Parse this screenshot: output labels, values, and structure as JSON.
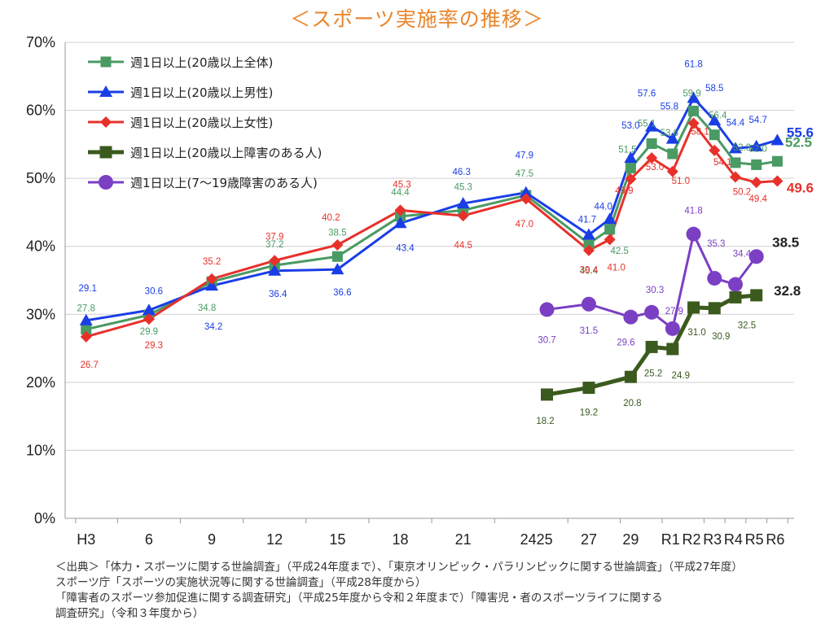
{
  "chart_data": {
    "type": "line",
    "title": "＜スポーツ実施率の推移＞",
    "yticks": [
      "0%",
      "10%",
      "20%",
      "30%",
      "40%",
      "50%",
      "60%",
      "70%"
    ],
    "ylim": [
      0,
      70
    ],
    "xticks": [
      "H3",
      "6",
      "9",
      "12",
      "15",
      "18",
      "21",
      "2425",
      "27",
      "29",
      "R1",
      "R2",
      "R3",
      "R4",
      "R5",
      "R6"
    ],
    "series": [
      {
        "name": "週1日以上(20歳以上全体)",
        "color": "#4a9a63",
        "marker": "square",
        "x": [
          3,
          6,
          9,
          12,
          15,
          18,
          21,
          24,
          27,
          28,
          29,
          30,
          31,
          32,
          33,
          34,
          35,
          36
        ],
        "y": [
          27.8,
          29.9,
          34.8,
          37.2,
          38.5,
          44.4,
          45.3,
          47.5,
          40.4,
          42.5,
          51.5,
          55.1,
          53.6,
          59.9,
          56.4,
          52.3,
          52.0,
          52.5
        ],
        "labels": [
          "27.8",
          "29.9",
          "34.8",
          "37.2",
          "38.5",
          "44.4",
          "45.3",
          "47.5",
          "40.4",
          "42.5",
          "51.5",
          "55.1",
          "53.6",
          "59.9",
          "56.4",
          "52.3",
          "52.0"
        ],
        "end_label": "52.5"
      },
      {
        "name": "週1日以上(20歳以上男性)",
        "color": "#1a3ee6",
        "marker": "triangle",
        "x": [
          3,
          6,
          9,
          12,
          15,
          18,
          21,
          24,
          27,
          28,
          29,
          30,
          31,
          32,
          33,
          34,
          35,
          36
        ],
        "y": [
          29.1,
          30.6,
          34.2,
          36.4,
          36.6,
          43.4,
          46.3,
          47.9,
          41.7,
          44.0,
          53.0,
          57.6,
          55.8,
          61.8,
          58.5,
          54.4,
          54.7,
          55.6
        ],
        "labels": [
          "29.1",
          "30.6",
          "34.2",
          "36.4",
          "36.6",
          "43.4",
          "46.3",
          "47.9",
          "41.7",
          "44.0",
          "53.0",
          "57.6",
          "55.8",
          "61.8",
          "58.5",
          "54.4",
          "54.7"
        ],
        "end_label": "55.6"
      },
      {
        "name": "週1日以上(20歳以上女性)",
        "color": "#e8302a",
        "marker": "diamond",
        "x": [
          3,
          6,
          9,
          12,
          15,
          18,
          21,
          24,
          27,
          28,
          29,
          30,
          31,
          32,
          33,
          34,
          35,
          36
        ],
        "y": [
          26.7,
          29.3,
          35.2,
          37.9,
          40.2,
          45.3,
          44.5,
          47.0,
          39.4,
          41.0,
          49.9,
          53.0,
          51.0,
          58.1,
          54.1,
          50.2,
          49.4,
          49.6
        ],
        "labels": [
          "26.7",
          "29.3",
          "35.2",
          "37.9",
          "40.2",
          "45.3",
          "44.5",
          "47.0",
          "39.4",
          "41.0",
          "49.9",
          "53.0",
          "51.0",
          "58.1",
          "54.1",
          "50.2",
          "49.4"
        ],
        "end_label": "49.6"
      },
      {
        "name": "週1日以上(20歳以上障害のある人)",
        "color": "#3b5a1e",
        "marker": "square",
        "x": [
          25,
          27,
          29,
          30,
          31,
          32,
          33,
          34,
          35
        ],
        "y": [
          18.2,
          19.2,
          20.8,
          25.2,
          24.9,
          31.0,
          30.9,
          32.5,
          32.8
        ],
        "labels": [
          "18.2",
          "19.2",
          "20.8",
          "25.2",
          "24.9",
          "31.0",
          "30.9",
          "32.5"
        ],
        "end_label": "32.8"
      },
      {
        "name": "週1日以上(7～19歳障害のある人)",
        "color": "#7b3fc4",
        "marker": "circle",
        "x": [
          25,
          27,
          29,
          30,
          31,
          32,
          33,
          34,
          35
        ],
        "y": [
          30.7,
          31.5,
          29.6,
          30.3,
          27.9,
          41.8,
          35.3,
          34.4,
          38.5
        ],
        "labels": [
          "30.7",
          "31.5",
          "29.6",
          "30.3",
          "27.9",
          "41.8",
          "35.3",
          "34.4"
        ],
        "end_label": "38.5"
      }
    ]
  },
  "source": [
    "＜出典＞「体力・スポーツに関する世論調査」（平成24年度まで）、「東京オリンピック・パラリンピックに関する世論調査」（平成27年度）",
    "スポーツ庁「スポーツの実施状況等に関する世論調査」（平成28年度から）",
    "「障害者のスポーツ参加促進に関する調査研究」（平成25年度から令和２年度まで）「障害児・者のスポーツライフに関する",
    "調査研究」（令和３年度から）"
  ]
}
